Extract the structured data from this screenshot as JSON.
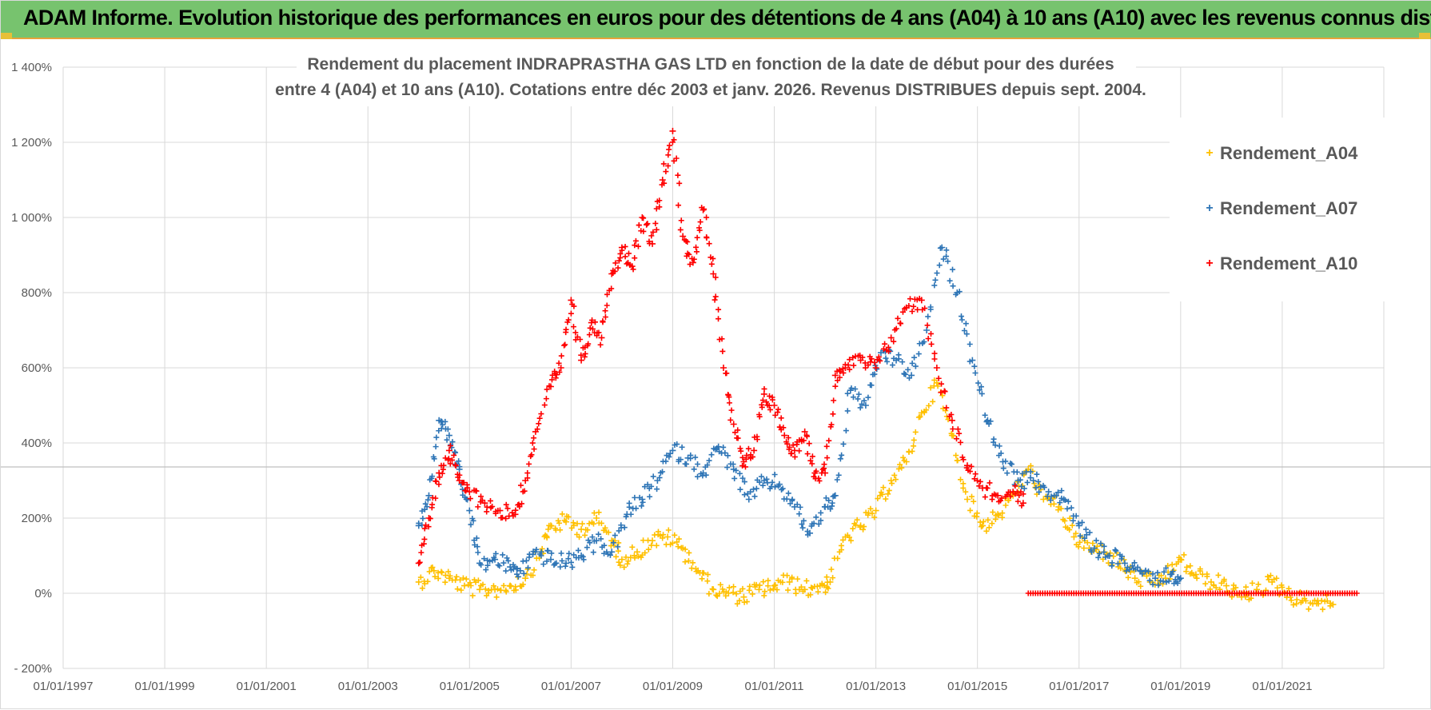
{
  "banner": {
    "title": "ADAM Informe. Evolution historique des performances en euros pour des détentions de 4 ans (A04) à 10 ans (A10) avec les revenus connus distribués"
  },
  "colors": {
    "A04": "#ffc000",
    "A07": "#2e75b6",
    "A10": "#ff0000",
    "banner": "#77c36e"
  },
  "chart_data": {
    "type": "scatter",
    "title_lines": [
      "Rendement du placement INDRAPRASTHA GAS LTD en fonction de la date de début pour des durées",
      "entre 4 (A04) et 10 ans (A10).  Cotations entre déc 2003 et janv. 2026. Revenus DISTRIBUES depuis sept. 2004."
    ],
    "xlabel": "",
    "ylabel": "",
    "xlim": [
      1997.0,
      2023.0
    ],
    "ylim": [
      -200,
      1400
    ],
    "x_ticks": [
      1997,
      1999,
      2001,
      2003,
      2005,
      2007,
      2009,
      2011,
      2013,
      2015,
      2017,
      2019,
      2021
    ],
    "x_tick_labels": [
      "01/01/1997",
      "01/01/1999",
      "01/01/2001",
      "01/01/2003",
      "01/01/2005",
      "01/01/2007",
      "01/01/2009",
      "01/01/2011",
      "01/01/2013",
      "01/01/2015",
      "01/01/2017",
      "01/01/2019",
      "01/01/2021"
    ],
    "y_ticks": [
      -200,
      0,
      200,
      400,
      600,
      800,
      1000,
      1200,
      1400
    ],
    "y_tick_labels": [
      "- 200%",
      "0%",
      "200%",
      "400%",
      "600%",
      "800%",
      "1 000%",
      "1 200%",
      "1 400%"
    ],
    "grid": true,
    "legend_position": "top-right",
    "series": [
      {
        "name": "Rendement_A04",
        "color": "#ffc000",
        "marker": "+",
        "x": [
          2004.0,
          2004.3,
          2004.6,
          2004.9,
          2005.2,
          2005.5,
          2005.8,
          2006.1,
          2006.4,
          2006.6,
          2006.9,
          2007.2,
          2007.5,
          2007.8,
          2008.0,
          2008.3,
          2008.6,
          2008.9,
          2009.2,
          2009.5,
          2009.8,
          2010.1,
          2010.4,
          2010.7,
          2011.0,
          2011.3,
          2011.6,
          2011.9,
          2012.1,
          2012.4,
          2012.7,
          2013.0,
          2013.3,
          2013.6,
          2013.9,
          2014.2,
          2014.5,
          2014.8,
          2015.1,
          2015.4,
          2015.7,
          2016.0,
          2016.3,
          2016.6,
          2016.9,
          2017.2,
          2017.5,
          2017.8,
          2018.1,
          2018.4,
          2018.7,
          2019.0,
          2019.3,
          2019.6,
          2019.9,
          2020.2,
          2020.5,
          2020.8,
          2021.1,
          2021.4,
          2021.7,
          2022.0
        ],
        "y": [
          30,
          60,
          40,
          20,
          10,
          10,
          20,
          40,
          110,
          180,
          190,
          170,
          200,
          140,
          90,
          110,
          140,
          150,
          120,
          60,
          10,
          0,
          -10,
          10,
          20,
          30,
          10,
          20,
          30,
          150,
          180,
          220,
          300,
          350,
          480,
          560,
          420,
          250,
          180,
          210,
          260,
          330,
          250,
          230,
          150,
          120,
          110,
          80,
          40,
          30,
          40,
          90,
          50,
          30,
          20,
          -10,
          10,
          30,
          0,
          -20,
          -20,
          -30
        ]
      },
      {
        "name": "Rendement_A07",
        "color": "#2e75b6",
        "marker": "+",
        "x": [
          2004.0,
          2004.2,
          2004.4,
          2004.6,
          2004.8,
          2005.0,
          2005.2,
          2005.5,
          2005.8,
          2006.0,
          2006.3,
          2006.6,
          2006.9,
          2007.2,
          2007.5,
          2007.8,
          2008.1,
          2008.4,
          2008.7,
          2009.0,
          2009.3,
          2009.6,
          2009.9,
          2010.2,
          2010.5,
          2010.8,
          2011.1,
          2011.4,
          2011.7,
          2012.0,
          2012.2,
          2012.5,
          2012.8,
          2013.1,
          2013.4,
          2013.7,
          2014.0,
          2014.3,
          2014.6,
          2014.9,
          2015.2,
          2015.5,
          2015.8,
          2016.1,
          2016.4,
          2016.7,
          2017.0,
          2017.3,
          2017.6,
          2017.9,
          2018.2,
          2018.5,
          2018.8,
          2019.0
        ],
        "y": [
          180,
          260,
          460,
          420,
          330,
          220,
          80,
          90,
          70,
          60,
          110,
          90,
          80,
          100,
          140,
          110,
          210,
          250,
          300,
          380,
          360,
          320,
          390,
          330,
          250,
          300,
          290,
          230,
          160,
          230,
          260,
          540,
          500,
          640,
          620,
          580,
          700,
          920,
          800,
          620,
          460,
          350,
          300,
          300,
          270,
          250,
          180,
          120,
          100,
          80,
          60,
          40,
          50,
          40
        ]
      },
      {
        "name": "Rendement_A10",
        "color": "#ff0000",
        "marker": "+",
        "x": [
          2004.0,
          2004.2,
          2004.4,
          2004.6,
          2004.8,
          2005.0,
          2005.3,
          2005.6,
          2005.9,
          2006.1,
          2006.3,
          2006.6,
          2006.8,
          2007.0,
          2007.2,
          2007.4,
          2007.6,
          2007.8,
          2008.0,
          2008.2,
          2008.4,
          2008.6,
          2008.8,
          2009.0,
          2009.2,
          2009.4,
          2009.6,
          2009.8,
          2010.0,
          2010.2,
          2010.4,
          2010.6,
          2010.8,
          2011.0,
          2011.2,
          2011.4,
          2011.6,
          2011.8,
          2012.0,
          2012.2,
          2012.4,
          2012.7,
          2013.0,
          2013.3,
          2013.6,
          2013.9,
          2014.2,
          2014.5,
          2014.8,
          2015.1,
          2015.4,
          2015.7,
          2015.9
        ],
        "y": [
          80,
          200,
          320,
          380,
          300,
          270,
          240,
          220,
          210,
          300,
          430,
          550,
          600,
          780,
          620,
          720,
          680,
          850,
          920,
          870,
          1000,
          930,
          1100,
          1230,
          950,
          880,
          1020,
          850,
          600,
          450,
          350,
          380,
          530,
          500,
          420,
          380,
          430,
          320,
          320,
          580,
          600,
          620,
          600,
          680,
          760,
          780,
          600,
          460,
          340,
          280,
          260,
          270,
          240
        ],
        "flat_segment": {
          "x_start": 2016.0,
          "x_end": 2022.5,
          "y": 0
        }
      }
    ]
  }
}
